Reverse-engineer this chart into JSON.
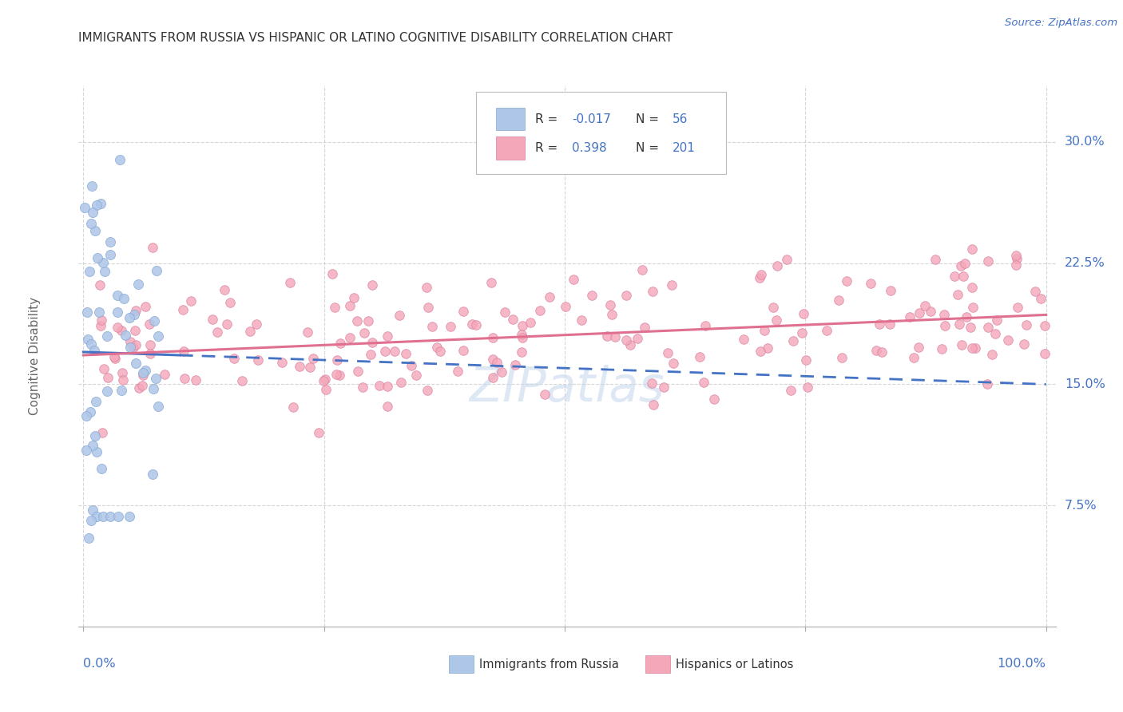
{
  "title": "IMMIGRANTS FROM RUSSIA VS HISPANIC OR LATINO COGNITIVE DISABILITY CORRELATION CHART",
  "source": "Source: ZipAtlas.com",
  "ylabel": "Cognitive Disability",
  "yticks": [
    "30.0%",
    "22.5%",
    "15.0%",
    "7.5%"
  ],
  "ytick_values": [
    0.3,
    0.225,
    0.15,
    0.075
  ],
  "ymin": 0.0,
  "ymax": 0.335,
  "xmin": -0.005,
  "xmax": 1.01,
  "background_color": "#ffffff",
  "grid_color": "#cccccc",
  "scatter_blue_color": "#aec6e8",
  "scatter_blue_edge": "#85a9d4",
  "scatter_pink_color": "#f4a7b9",
  "scatter_pink_edge": "#d97fa0",
  "blue_line_color": "#4472c4",
  "pink_line_color": "#e07090",
  "watermark_color": "#c8d8ee",
  "axis_tick_color": "#4472c4",
  "title_color": "#333333",
  "source_color": "#4472c4",
  "ylabel_color": "#666666",
  "legend_text_color": "#333333",
  "legend_value_color": "#4472c4"
}
